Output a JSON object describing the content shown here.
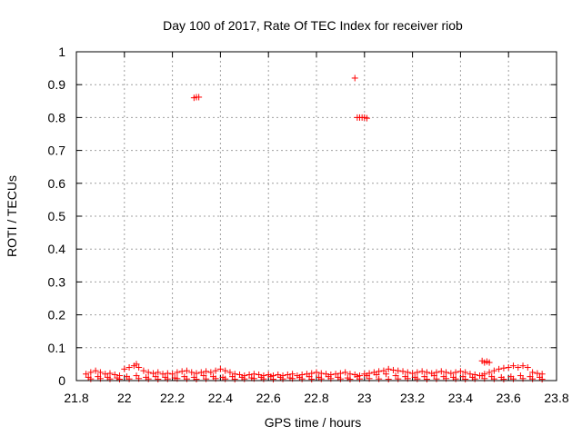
{
  "chart_data": {
    "type": "scatter",
    "title": "Day 100 of 2017, Rate Of TEC Index for receiver riob",
    "xlabel": "GPS time / hours",
    "ylabel": "ROTI / TECUs",
    "xlim": [
      21.8,
      23.8
    ],
    "ylim": [
      0,
      1
    ],
    "xticks": [
      "21.8",
      "22",
      "22.2",
      "22.4",
      "22.6",
      "22.8",
      "23",
      "23.2",
      "23.4",
      "23.6",
      "23.8"
    ],
    "yticks": [
      "0",
      "0.1",
      "0.2",
      "0.3",
      "0.4",
      "0.5",
      "0.6",
      "0.7",
      "0.8",
      "0.9",
      "1"
    ],
    "grid": true,
    "marker": "+",
    "color": "#ff0000",
    "series": [
      {
        "name": "ROTI",
        "x": [
          21.84,
          21.86,
          21.88,
          21.9,
          21.92,
          21.94,
          21.96,
          21.98,
          22.0,
          22.02,
          22.04,
          22.05,
          22.06,
          22.08,
          22.1,
          22.12,
          22.14,
          22.16,
          22.18,
          22.2,
          22.22,
          22.24,
          22.26,
          22.28,
          22.3,
          22.32,
          22.34,
          22.36,
          22.38,
          22.4,
          22.42,
          22.44,
          22.46,
          22.48,
          22.5,
          22.52,
          22.54,
          22.56,
          22.58,
          22.6,
          22.62,
          22.64,
          22.66,
          22.68,
          22.7,
          22.72,
          22.74,
          22.76,
          22.78,
          22.8,
          22.82,
          22.84,
          22.86,
          22.88,
          22.9,
          22.92,
          22.94,
          22.96,
          22.98,
          23.0,
          23.02,
          23.04,
          23.06,
          23.08,
          23.1,
          23.12,
          23.14,
          23.16,
          23.18,
          23.2,
          23.22,
          23.24,
          23.26,
          23.28,
          23.3,
          23.32,
          23.34,
          23.36,
          23.38,
          23.4,
          23.42,
          23.44,
          23.46,
          23.48,
          23.5,
          23.52,
          23.54,
          23.56,
          23.58,
          23.6,
          23.62,
          23.64,
          23.66,
          23.68,
          23.7,
          23.72,
          23.74,
          21.85,
          21.89,
          21.93,
          21.97,
          22.01,
          22.05,
          22.09,
          22.13,
          22.17,
          22.21,
          22.25,
          22.29,
          22.33,
          22.37,
          22.41,
          22.45,
          22.49,
          22.53,
          22.57,
          22.61,
          22.65,
          22.69,
          22.73,
          22.77,
          22.81,
          22.85,
          22.89,
          22.93,
          22.97,
          23.01,
          23.05,
          23.09,
          23.13,
          23.17,
          23.21,
          23.25,
          23.29,
          23.33,
          23.37,
          23.41,
          23.45,
          23.49,
          23.53,
          23.57,
          23.61,
          23.65,
          23.69,
          23.73,
          21.86,
          21.9,
          21.94,
          21.98,
          22.02,
          22.06,
          22.1,
          22.14,
          22.18,
          22.22,
          22.26,
          22.3,
          22.34,
          22.38,
          22.42,
          22.46,
          22.5,
          22.54,
          22.58,
          22.62,
          22.66,
          22.7,
          22.74,
          22.78,
          22.82,
          22.86,
          22.9,
          22.94,
          22.98,
          23.02,
          23.06,
          23.1,
          23.14,
          23.18,
          23.22,
          23.26,
          23.3,
          23.34,
          23.38,
          23.42,
          23.46,
          23.5,
          23.54,
          23.58,
          23.62,
          23.66,
          23.7,
          23.74,
          22.29,
          22.3,
          22.31,
          22.96,
          22.97,
          22.98,
          22.99,
          23.0,
          23.01,
          23.49,
          23.5,
          23.51,
          23.52
        ],
        "y": [
          0.02,
          0.025,
          0.03,
          0.025,
          0.02,
          0.022,
          0.018,
          0.015,
          0.035,
          0.04,
          0.045,
          0.05,
          0.04,
          0.03,
          0.025,
          0.022,
          0.025,
          0.02,
          0.022,
          0.02,
          0.025,
          0.028,
          0.03,
          0.025,
          0.022,
          0.025,
          0.028,
          0.025,
          0.03,
          0.035,
          0.03,
          0.025,
          0.02,
          0.018,
          0.015,
          0.018,
          0.02,
          0.018,
          0.015,
          0.018,
          0.015,
          0.018,
          0.015,
          0.018,
          0.02,
          0.015,
          0.018,
          0.02,
          0.022,
          0.025,
          0.022,
          0.02,
          0.018,
          0.02,
          0.022,
          0.025,
          0.02,
          0.018,
          0.015,
          0.02,
          0.022,
          0.025,
          0.028,
          0.03,
          0.035,
          0.032,
          0.03,
          0.028,
          0.025,
          0.022,
          0.025,
          0.028,
          0.025,
          0.022,
          0.025,
          0.028,
          0.025,
          0.022,
          0.025,
          0.028,
          0.025,
          0.02,
          0.018,
          0.015,
          0.02,
          0.025,
          0.03,
          0.035,
          0.038,
          0.04,
          0.045,
          0.04,
          0.045,
          0.04,
          0.025,
          0.022,
          0.02,
          0.01,
          0.012,
          0.01,
          0.008,
          0.012,
          0.015,
          0.01,
          0.012,
          0.01,
          0.008,
          0.012,
          0.01,
          0.015,
          0.012,
          0.01,
          0.012,
          0.01,
          0.008,
          0.01,
          0.012,
          0.01,
          0.008,
          0.01,
          0.012,
          0.01,
          0.012,
          0.01,
          0.008,
          0.012,
          0.015,
          0.018,
          0.02,
          0.015,
          0.012,
          0.01,
          0.012,
          0.015,
          0.012,
          0.01,
          0.012,
          0.01,
          0.015,
          0.012,
          0.01,
          0.012,
          0.015,
          0.012,
          0.01,
          0.005,
          0.006,
          0.005,
          0.004,
          0.005,
          0.006,
          0.005,
          0.004,
          0.005,
          0.006,
          0.005,
          0.004,
          0.005,
          0.006,
          0.005,
          0.004,
          0.005,
          0.006,
          0.005,
          0.004,
          0.005,
          0.006,
          0.005,
          0.004,
          0.005,
          0.006,
          0.005,
          0.004,
          0.005,
          0.006,
          0.005,
          0.004,
          0.005,
          0.006,
          0.005,
          0.004,
          0.005,
          0.006,
          0.005,
          0.004,
          0.005,
          0.006,
          0.005,
          0.004,
          0.005,
          0.006,
          0.005,
          0.004,
          0.86,
          0.862,
          0.862,
          0.92,
          0.8,
          0.8,
          0.8,
          0.8,
          0.798,
          0.06,
          0.055,
          0.058,
          0.055
        ]
      }
    ]
  }
}
